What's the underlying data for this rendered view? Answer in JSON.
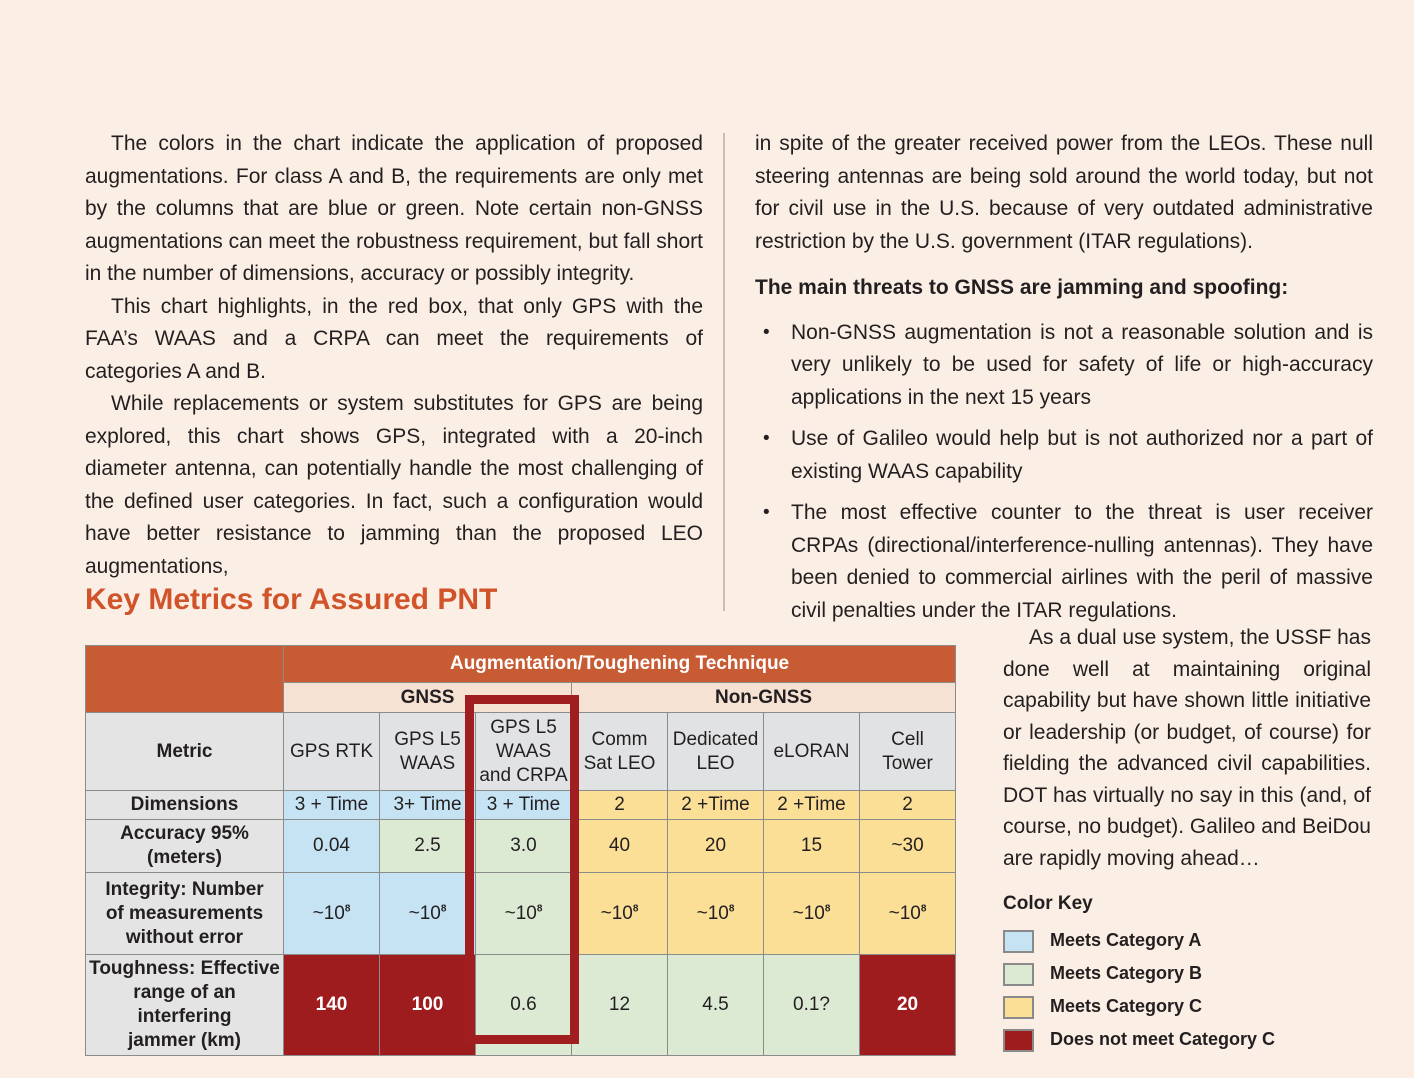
{
  "page": {
    "background": "#fbeee4"
  },
  "left_column": {
    "paragraphs": [
      "The colors in the chart indicate the application of proposed augmentations. For class A and B, the requirements are only met by the columns that are blue or green. Note certain non-GNSS augmentations can meet the robustness requirement, but fall short in the number of dimensions, accuracy or possibly integrity.",
      "This chart highlights, in the red box, that only GPS with the FAA’s WAAS and a CRPA can meet the requirements of categories A and B.",
      "While replacements or system substitutes for GPS are being explored, this chart shows GPS, integrated with a 20-inch diameter antenna, can potentially handle the most challenging of the defined user categories. In fact, such a configuration would have better resistance to jamming than the proposed LEO augmentations,"
    ]
  },
  "right_column": {
    "intro": "in spite of the greater received power from the LEOs. These null steering antennas are being sold around the world today, but not for civil use in the U.S. because of very outdated administrative restriction by the U.S. government (ITAR regulations).",
    "threats_heading": "The main threats to GNSS are jamming and spoofing:",
    "bullets": [
      "Non-GNSS augmentation is not a reasonable solution and is very unlikely to be used for safety of life or high-accuracy applications in the next 15 years",
      "Use of Galileo would help but is not authorized nor a part of existing WAAS capability",
      "The most effective counter to the threat is user receiver CRPAs (directional/interference-nulling antennas). They have been denied to commercial airlines with the peril of massive civil penalties under the ITAR regulations."
    ]
  },
  "section": {
    "heading": "Key Metrics for Assured PNT",
    "heading_color": "#d1532a"
  },
  "table": {
    "top_header": "Augmentation/Toughening Technique",
    "group_headers": [
      {
        "label": "GNSS",
        "span": 3
      },
      {
        "label": "Non-GNSS",
        "span": 4
      }
    ],
    "metric_label": "Metric",
    "columns": [
      "GPS RTK",
      "GPS L5\nWAAS",
      "GPS L5\nWAAS\nand CRPA",
      "Comm\nSat LEO",
      "Dedicated\nLEO",
      "eLORAN",
      "Cell\nTower"
    ],
    "highlighted_column": "GPS L5 WAAS and CRPA",
    "category_colors": {
      "A": "#c5e3f3",
      "B": "#dcead4",
      "C": "#fbdf97",
      "F": "#9e1b1e"
    },
    "rows": [
      {
        "label": "Dimensions",
        "cells": [
          {
            "value": "3 + Time",
            "cat": "A"
          },
          {
            "value": "3+ Time",
            "cat": "A"
          },
          {
            "value": "3 + Time",
            "cat": "A"
          },
          {
            "value": "2",
            "cat": "C"
          },
          {
            "value": "2 +Time",
            "cat": "C"
          },
          {
            "value": "2 +Time",
            "cat": "C"
          },
          {
            "value": "2",
            "cat": "C"
          }
        ]
      },
      {
        "label": "Accuracy 95%\n(meters)",
        "cells": [
          {
            "value": "0.04",
            "cat": "A"
          },
          {
            "value": "2.5",
            "cat": "B"
          },
          {
            "value": "3.0",
            "cat": "B"
          },
          {
            "value": "40",
            "cat": "C"
          },
          {
            "value": "20",
            "cat": "C"
          },
          {
            "value": "15",
            "cat": "C"
          },
          {
            "value": "~30",
            "cat": "C"
          }
        ]
      },
      {
        "label": "Integrity: Number\nof measurements\nwithout error",
        "cells": [
          {
            "value": "~10",
            "sup": "8",
            "cat": "A"
          },
          {
            "value": "~10",
            "sup": "8",
            "cat": "A"
          },
          {
            "value": "~10",
            "sup": "8",
            "cat": "B"
          },
          {
            "value": "~10",
            "sup": "8",
            "cat": "C"
          },
          {
            "value": "~10",
            "sup": "8",
            "cat": "C"
          },
          {
            "value": "~10",
            "sup": "8",
            "cat": "C"
          },
          {
            "value": "~10",
            "sup": "8",
            "cat": "C"
          }
        ]
      },
      {
        "label": "Toughness: Effective\nrange of an interfering\njammer (km)",
        "cells": [
          {
            "value": "140",
            "cat": "F"
          },
          {
            "value": "100",
            "cat": "F"
          },
          {
            "value": "0.6",
            "cat": "B"
          },
          {
            "value": "12",
            "cat": "B"
          },
          {
            "value": "4.5",
            "cat": "B"
          },
          {
            "value": "0.1?",
            "cat": "B"
          },
          {
            "value": "20",
            "cat": "F"
          }
        ]
      }
    ]
  },
  "sidebar": {
    "paragraph": "As a dual use system, the USSF has done well at maintaining original capability but have shown little initiative or leadership (or budget, of course) for fielding the advanced civil capabilities. DOT has virtually no say in this (and, of course, no budget). Galileo and BeiDou are rapidly moving ahead…",
    "color_key_title": "Color Key",
    "legend": [
      {
        "label": "Meets Category A",
        "color": "#c5e3f3"
      },
      {
        "label": "Meets Category B",
        "color": "#dcead4"
      },
      {
        "label": "Meets Category C",
        "color": "#fbdf97"
      },
      {
        "label": "Does not meet Category C",
        "color": "#9e1b1e"
      }
    ]
  }
}
